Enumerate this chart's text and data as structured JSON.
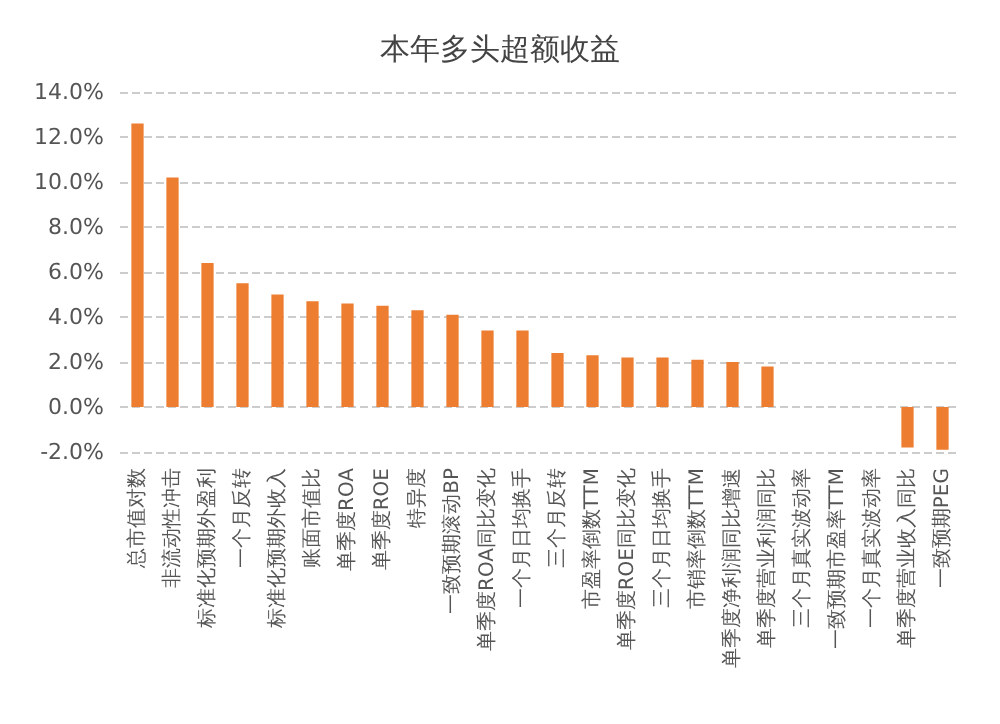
{
  "chart_data": {
    "type": "bar",
    "title": "本年多头超额收益",
    "categories": [
      "总市值对数",
      "非流动性冲击",
      "标准化预期外盈利",
      "一个月反转",
      "标准化预期外收入",
      "账面市值比",
      "单季度ROA",
      "单季度ROE",
      "特异度",
      "一致预期滚动BP",
      "单季度ROA同比变化",
      "一个月日均换手",
      "三个月反转",
      "市盈率倒数TTM",
      "单季度ROE同比变化",
      "三个月日均换手",
      "市销率倒数TTM",
      "单季度净利润同比增速",
      "单季度营业利润同比",
      "三个月真实波动率",
      "一致预期市盈率TTM",
      "一个月真实波动率",
      "单季度营业收入同比",
      "一致预期PEG"
    ],
    "values": [
      12.6,
      10.2,
      6.4,
      5.5,
      5.0,
      4.7,
      4.6,
      4.5,
      4.3,
      4.1,
      3.4,
      3.4,
      2.4,
      2.3,
      2.2,
      2.2,
      2.1,
      2.0,
      1.8,
      null,
      null,
      null,
      -1.8,
      -1.9
    ],
    "color": "#ed7d31",
    "ylim": [
      -2,
      14
    ],
    "yticks": [
      {
        "value": -2,
        "label": "-2.0%"
      },
      {
        "value": 0,
        "label": "0.0%"
      },
      {
        "value": 2,
        "label": "2.0%"
      },
      {
        "value": 4,
        "label": "4.0%"
      },
      {
        "value": 6,
        "label": "6.0%"
      },
      {
        "value": 8,
        "label": "8.0%"
      },
      {
        "value": 10,
        "label": "10.0%"
      },
      {
        "value": 12,
        "label": "12.0%"
      },
      {
        "value": 14,
        "label": "14.0%"
      }
    ],
    "grid": "y"
  }
}
